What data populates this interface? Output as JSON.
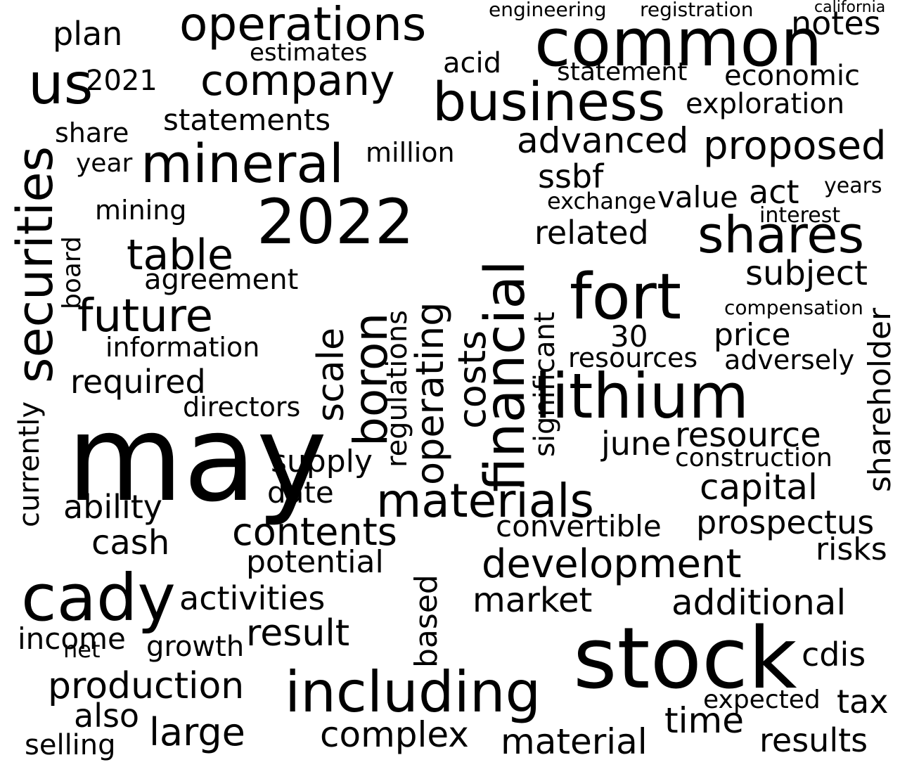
{
  "word_cloud": {
    "background": "#ffffff",
    "text_color": "#000000",
    "words": [
      "may",
      "stock",
      "common",
      "cady",
      "lithium",
      "2022",
      "fort",
      "business",
      "operations",
      "mineral",
      "company",
      "financial",
      "shares",
      "including",
      "development",
      "materials",
      "securities",
      "boron",
      "proposed",
      "costs",
      "operating",
      "scale",
      "future",
      "table",
      "contents",
      "production",
      "capital",
      "resource",
      "additional",
      "us",
      "market",
      "advanced",
      "statements",
      "prospectus",
      "large",
      "material",
      "complex",
      "result",
      "activities",
      "potential",
      "value",
      "price",
      "subject",
      "related",
      "convertible",
      "results",
      "ssbf",
      "directors",
      "cdis",
      "time",
      "tax",
      "cash",
      "information",
      "required",
      "agreement",
      "plan",
      "notes",
      "economic",
      "exploration",
      "act",
      "shareholder",
      "resources",
      "adversely",
      "june",
      "construction",
      "also",
      "growth",
      "income",
      "ability",
      "risks",
      "selling",
      "based",
      "regulations",
      "significant",
      "supply",
      "exchange",
      "acid",
      "estimates",
      "statement",
      "engineering",
      "registration",
      "california",
      "mining",
      "million",
      "share",
      "year",
      "date",
      "30",
      "currently",
      "net",
      "compensation",
      "board",
      "years",
      "interest",
      "expected",
      "2021"
    ]
  }
}
